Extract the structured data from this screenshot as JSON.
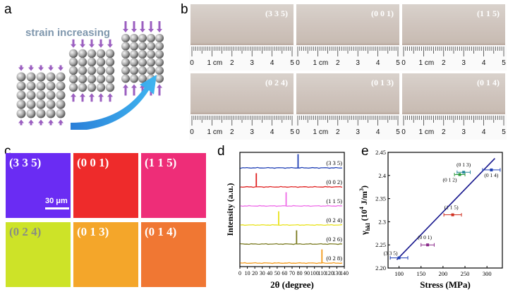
{
  "panel_a": {
    "letter": "a",
    "caption": "strain increasing"
  },
  "panel_b": {
    "letter": "b",
    "photos": [
      {
        "label": "(3 3 5)"
      },
      {
        "label": "(0 0 1)"
      },
      {
        "label": "(1 1 5)"
      },
      {
        "label": "(0 2 4)"
      },
      {
        "label": "(0 1 3)"
      },
      {
        "label": "(0 1 4)"
      }
    ],
    "ruler_ticks": [
      "0",
      "1 cm",
      "2",
      "3",
      "4",
      "5"
    ]
  },
  "panel_c": {
    "letter": "c",
    "tiles": [
      {
        "label": "(3 3 5)",
        "color": "#6a2cf3",
        "text_color": "#ffffff"
      },
      {
        "label": "(0 0 1)",
        "color": "#ee2b2b",
        "text_color": "#ffffff"
      },
      {
        "label": "(1 1 5)",
        "color": "#ee2d78",
        "text_color": "#ffffff"
      },
      {
        "label": "(0 2 4)",
        "color": "#cde328",
        "text_color": "#8a8f82"
      },
      {
        "label": "(0 1 3)",
        "color": "#f4a62a",
        "text_color": "#ffffff"
      },
      {
        "label": "(0 1 4)",
        "color": "#f07733",
        "text_color": "#ffffff"
      }
    ],
    "scalebar": "30 μm"
  },
  "panel_d": {
    "letter": "d",
    "xlabel": "2θ (degree)",
    "ylabel": "Intensity (a.u.)",
    "xticks": [
      "0",
      "10",
      "20",
      "30",
      "40",
      "50",
      "60",
      "70",
      "80",
      "90",
      "100",
      "110",
      "120",
      "130",
      "140"
    ]
  },
  "panel_e": {
    "letter": "e",
    "xlabel": "Stress (MPa)",
    "ylabel_main": "γ",
    "ylabel_sub": "hkl",
    "ylabel_rest": " (10",
    "ylabel_sup": "4",
    "ylabel_end": " J/m",
    "ylabel_sup2": "3",
    "ylabel_close": ")",
    "xticks": [
      "100",
      "150",
      "200",
      "250",
      "300"
    ],
    "yticks": [
      "2.20",
      "2.25",
      "2.3",
      "2.35",
      "2.4",
      "2.45"
    ]
  },
  "chart_data": [
    {
      "type": "line",
      "title": "",
      "xlabel": "2θ (degree)",
      "ylabel": "Intensity (a.u.)",
      "xlim": [
        0,
        140
      ],
      "grid": false,
      "series": [
        {
          "name": "(3 3 5)",
          "color": "#1f3fb5",
          "peak_x": 78
        },
        {
          "name": "(0 0 2)",
          "color": "#e02020",
          "peak_x": 22
        },
        {
          "name": "(1 1 5)",
          "color": "#ee6be8",
          "peak_x": 62
        },
        {
          "name": "(0 2 4)",
          "color": "#e8e21a",
          "peak_x": 52
        },
        {
          "name": "(0 2 6)",
          "color": "#7a7a20",
          "peak_x": 76
        },
        {
          "name": "(0 2 8)",
          "color": "#f39a1a",
          "peak_x": 110
        }
      ]
    },
    {
      "type": "scatter",
      "title": "",
      "xlabel": "Stress (MPa)",
      "ylabel": "γhkl (10^4 J/m^3)",
      "xlim": [
        75,
        335
      ],
      "ylim": [
        2.2,
        2.45
      ],
      "grid": false,
      "points": [
        {
          "label": "(3 3 5)",
          "x": 100,
          "y": 2.222,
          "xerr": 20,
          "color": "#1f3fb5"
        },
        {
          "label": "(0 0 1)",
          "x": 165,
          "y": 2.25,
          "xerr": 15,
          "color": "#8a2a8a"
        },
        {
          "label": "(1 1 5)",
          "x": 222,
          "y": 2.315,
          "xerr": 20,
          "color": "#d03020"
        },
        {
          "label": "(0 1 2)",
          "x": 238,
          "y": 2.402,
          "xerr": 12,
          "color": "#2a9a3a"
        },
        {
          "label": "(0 1 3)",
          "x": 247,
          "y": 2.407,
          "xerr": 15,
          "color": "#2a8a9a"
        },
        {
          "label": "(0 1 4)",
          "x": 310,
          "y": 2.412,
          "xerr": 20,
          "color": "#1f3fb5"
        }
      ],
      "fit_line": {
        "x": [
          95,
          318
        ],
        "y": [
          2.218,
          2.437
        ],
        "color": "#14148c"
      }
    }
  ]
}
